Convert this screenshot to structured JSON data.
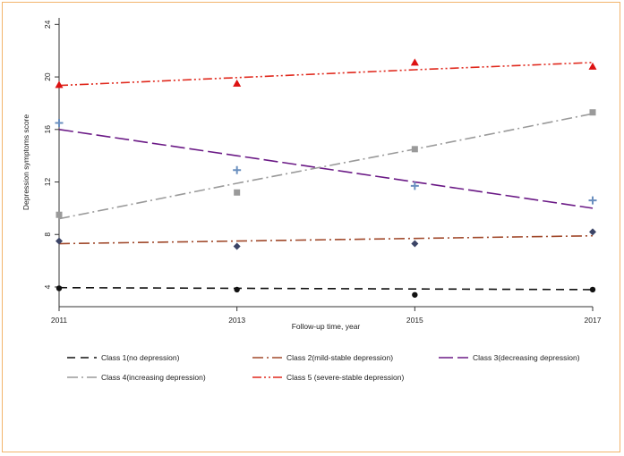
{
  "chart_data": {
    "type": "line",
    "title": "",
    "xlabel": "Follow-up time, year",
    "ylabel": "Depression symptoms score",
    "x": [
      2011,
      2013,
      2015,
      2017
    ],
    "xticks": [
      "2011",
      "2013",
      "2015",
      "2017"
    ],
    "yticks": [
      "4",
      "8",
      "12",
      "16",
      "20",
      "24"
    ],
    "xlim": [
      2011,
      2017
    ],
    "ylim": [
      2.5,
      24.5
    ],
    "grid": false,
    "legend_position": "bottom",
    "series": [
      {
        "name": "Class 1(no depression)",
        "observed": [
          3.9,
          3.8,
          3.4,
          3.8
        ],
        "fitted": [
          3.95,
          3.9,
          3.85,
          3.8
        ],
        "color": "#111111",
        "marker": "circle",
        "marker_color": "#111111",
        "dash": "9,6"
      },
      {
        "name": "Class 2(mild-stable depression)",
        "observed": [
          7.5,
          7.1,
          7.3,
          8.2
        ],
        "fitted": [
          7.3,
          7.5,
          7.7,
          7.9
        ],
        "color": "#a0482a",
        "marker": "diamond",
        "marker_color": "#3b4466",
        "dash": "12,4,2,4"
      },
      {
        "name": "Class 3(decreasing depression)",
        "observed": [
          16.5,
          12.9,
          11.7,
          10.6
        ],
        "fitted": [
          16.0,
          14.0,
          12.0,
          10.0
        ],
        "color": "#6b1a86",
        "marker": "plus",
        "marker_color": "#6a8fbf",
        "dash": "16,5"
      },
      {
        "name": "Class 4(increasing depression)",
        "observed": [
          9.5,
          11.2,
          14.5,
          17.3
        ],
        "fitted": [
          9.2,
          11.9,
          14.5,
          17.2
        ],
        "color": "#9a9a9a",
        "marker": "square",
        "marker_color": "#9a9a9a",
        "dash": "12,4,2,4"
      },
      {
        "name": "Class 5  (severe-stable depression)",
        "observed": [
          19.4,
          19.5,
          21.1,
          20.8
        ],
        "fitted": [
          19.35,
          19.95,
          20.55,
          21.1
        ],
        "color": "#e0291d",
        "marker": "triangle",
        "marker_color": "#dd1111",
        "dash": "10,3,2,3,2,3"
      }
    ]
  }
}
